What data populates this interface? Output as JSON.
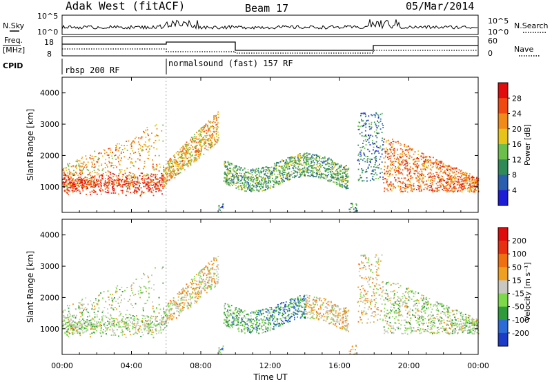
{
  "header": {
    "station": "Adak West (fitACF)",
    "beam": "Beam 17",
    "date": "05/Mar/2014"
  },
  "noise_panel": {
    "left_label": "N.Sky",
    "right_label": "N.Search",
    "left_ticks": [
      "10^5",
      "10^0"
    ],
    "right_ticks": [
      "10^5",
      "10^0"
    ]
  },
  "freq_panel": {
    "left_label_1": "Freq.",
    "left_label_2": "[MHz]",
    "right_label": "Nave",
    "left_ticks": [
      "18",
      "8"
    ],
    "right_ticks": [
      "60",
      "0"
    ]
  },
  "cpid": {
    "label": "CPID",
    "segments": [
      {
        "label": "rbsp 200 RF",
        "start_hour": 0
      },
      {
        "label": "normalsound (fast) 157 RF",
        "start_hour": 6
      }
    ]
  },
  "chart_data": [
    {
      "type": "heatmap",
      "name": "power",
      "ylabel": "Slant Range [km]",
      "xlabel": "Time UT",
      "xlim": [
        0,
        24
      ],
      "ylim": [
        180,
        4500
      ],
      "x_ticks": [
        "00:00",
        "04:00",
        "08:00",
        "12:00",
        "16:00",
        "20:00",
        "00:00"
      ],
      "y_ticks": [
        1000,
        2000,
        3000,
        4000
      ],
      "colorbar": {
        "label": "Power [dB]",
        "ticks": [
          4,
          8,
          12,
          16,
          20,
          24,
          28
        ],
        "colors": [
          "#1d1dd8",
          "#2a5fb0",
          "#2e8b57",
          "#6cbf4a",
          "#e8c31a",
          "#f28a18",
          "#f04a10",
          "#e30c0c"
        ]
      }
    },
    {
      "type": "heatmap",
      "name": "velocity",
      "ylabel": "Slant Range [km]",
      "xlabel": "Time UT",
      "xlim": [
        0,
        24
      ],
      "ylim": [
        180,
        4500
      ],
      "x_ticks": [
        "00:00",
        "04:00",
        "08:00",
        "12:00",
        "16:00",
        "20:00",
        "00:00"
      ],
      "y_ticks": [
        1000,
        2000,
        3000,
        4000
      ],
      "colorbar": {
        "label": "Velocity [m s⁻¹]",
        "ticks": [
          "200",
          "100",
          "50",
          "15",
          "-15",
          "-50",
          "-100",
          "-200"
        ],
        "colors": [
          "#1c3cc8",
          "#2c6ad8",
          "#2e9a3a",
          "#7dd84a",
          "#c8c8c0",
          "#f0a020",
          "#f07010",
          "#e83010",
          "#e00c0c"
        ]
      }
    }
  ]
}
